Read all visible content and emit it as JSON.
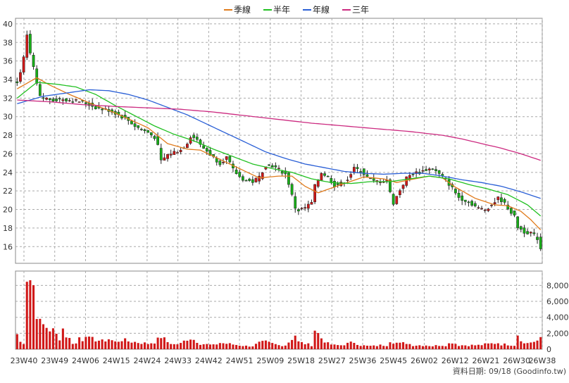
{
  "chart_data": {
    "type": "candlestick",
    "legend": [
      {
        "label": "季線",
        "color": "#e07b1c"
      },
      {
        "label": "半年",
        "color": "#20c020"
      },
      {
        "label": "年線",
        "color": "#2a5fd6"
      },
      {
        "label": "三年",
        "color": "#cc2a80"
      }
    ],
    "legend_position": "top-center",
    "grid": true,
    "price_axis": {
      "ylim": [
        14.2,
        40.6
      ],
      "ticks": [
        16,
        18,
        20,
        22,
        24,
        26,
        28,
        30,
        32,
        34,
        36,
        38,
        40
      ]
    },
    "volume_axis": {
      "ylim": [
        0,
        9800
      ],
      "ticks": [
        0,
        2000,
        4000,
        6000,
        8000
      ],
      "tick_labels": [
        "0",
        "2,000",
        "4,000",
        "6,000",
        "8,000"
      ]
    },
    "x_labels": [
      "23W40",
      "23W49",
      "24W06",
      "24W15",
      "24W24",
      "24W33",
      "24W42",
      "24W51",
      "25W09",
      "25W18",
      "25W27",
      "25W36",
      "25W45",
      "26W02",
      "26W12",
      "26W21",
      "26W30",
      "26W38"
    ],
    "colors": {
      "up": "#d01818",
      "down": "#18b018",
      "volume": "#d01818"
    },
    "price_anchors": [
      [
        0,
        33.8
      ],
      [
        1,
        34.6
      ],
      [
        2,
        36.3
      ],
      [
        3,
        38.7
      ],
      [
        4,
        36.8
      ],
      [
        5,
        35.2
      ],
      [
        6,
        33.5
      ],
      [
        7,
        32.1
      ],
      [
        8,
        32.0
      ],
      [
        10,
        31.9
      ],
      [
        12,
        31.8
      ],
      [
        14,
        31.9
      ],
      [
        16,
        31.8
      ],
      [
        18,
        31.7
      ],
      [
        20,
        31.6
      ],
      [
        22,
        31.3
      ],
      [
        24,
        31.0
      ],
      [
        26,
        30.8
      ],
      [
        28,
        30.7
      ],
      [
        30,
        30.4
      ],
      [
        32,
        30.0
      ],
      [
        34,
        29.6
      ],
      [
        36,
        29.0
      ],
      [
        38,
        28.6
      ],
      [
        40,
        28.3
      ],
      [
        42,
        27.8
      ],
      [
        43,
        26.8
      ],
      [
        44,
        25.2
      ],
      [
        46,
        25.9
      ],
      [
        48,
        26.2
      ],
      [
        50,
        26.4
      ],
      [
        52,
        27.2
      ],
      [
        53,
        27.9
      ],
      [
        55,
        27.6
      ],
      [
        56,
        26.9
      ],
      [
        58,
        26.3
      ],
      [
        60,
        25.6
      ],
      [
        62,
        25.0
      ],
      [
        64,
        25.6
      ],
      [
        66,
        24.3
      ],
      [
        68,
        23.5
      ],
      [
        70,
        23.1
      ],
      [
        72,
        23.0
      ],
      [
        74,
        23.5
      ],
      [
        76,
        24.8
      ],
      [
        78,
        24.7
      ],
      [
        80,
        24.3
      ],
      [
        82,
        23.8
      ],
      [
        83,
        22.8
      ],
      [
        85,
        20.2
      ],
      [
        86,
        19.9
      ],
      [
        88,
        20.2
      ],
      [
        90,
        20.7
      ],
      [
        91,
        22.5
      ],
      [
        93,
        24.0
      ],
      [
        95,
        23.5
      ],
      [
        97,
        22.6
      ],
      [
        99,
        22.8
      ],
      [
        101,
        23.3
      ],
      [
        103,
        24.4
      ],
      [
        105,
        24.2
      ],
      [
        107,
        23.5
      ],
      [
        109,
        23.0
      ],
      [
        111,
        23.1
      ],
      [
        113,
        23.2
      ],
      [
        114,
        21.8
      ],
      [
        115,
        20.7
      ],
      [
        117,
        22.1
      ],
      [
        119,
        23.4
      ],
      [
        121,
        23.9
      ],
      [
        123,
        24.0
      ],
      [
        125,
        24.3
      ],
      [
        127,
        24.4
      ],
      [
        129,
        23.8
      ],
      [
        131,
        23.2
      ],
      [
        133,
        22.3
      ],
      [
        135,
        21.3
      ],
      [
        137,
        21.0
      ],
      [
        139,
        20.6
      ],
      [
        141,
        20.1
      ],
      [
        143,
        20.0
      ],
      [
        145,
        20.5
      ],
      [
        147,
        21.2
      ],
      [
        148,
        21.0
      ],
      [
        150,
        20.2
      ],
      [
        152,
        19.2
      ],
      [
        153,
        18.1
      ],
      [
        155,
        17.6
      ],
      [
        157,
        17.5
      ],
      [
        159,
        16.9
      ],
      [
        160,
        15.8
      ]
    ],
    "volume_anchors": [
      [
        0,
        1900
      ],
      [
        1,
        900
      ],
      [
        2,
        800
      ],
      [
        3,
        9700
      ],
      [
        4,
        8900
      ],
      [
        5,
        8000
      ],
      [
        6,
        4800
      ],
      [
        7,
        3200
      ],
      [
        8,
        3000
      ],
      [
        9,
        2800
      ],
      [
        10,
        2500
      ],
      [
        11,
        2300
      ],
      [
        12,
        1800
      ],
      [
        13,
        1400
      ],
      [
        14,
        2600
      ],
      [
        15,
        1700
      ],
      [
        16,
        1300
      ],
      [
        17,
        800
      ],
      [
        18,
        700
      ],
      [
        19,
        1500
      ],
      [
        20,
        1200
      ],
      [
        21,
        2000
      ],
      [
        22,
        1300
      ],
      [
        24,
        1200
      ],
      [
        26,
        1000
      ],
      [
        28,
        1300
      ],
      [
        30,
        900
      ],
      [
        32,
        1200
      ],
      [
        34,
        1000
      ],
      [
        36,
        900
      ],
      [
        38,
        800
      ],
      [
        40,
        700
      ],
      [
        42,
        900
      ],
      [
        43,
        1200
      ],
      [
        44,
        1600
      ],
      [
        46,
        900
      ],
      [
        48,
        600
      ],
      [
        50,
        700
      ],
      [
        52,
        1300
      ],
      [
        53,
        1400
      ],
      [
        55,
        1000
      ],
      [
        56,
        700
      ],
      [
        58,
        600
      ],
      [
        60,
        500
      ],
      [
        62,
        800
      ],
      [
        64,
        700
      ],
      [
        66,
        600
      ],
      [
        68,
        500
      ],
      [
        70,
        400
      ],
      [
        72,
        400
      ],
      [
        74,
        800
      ],
      [
        76,
        900
      ],
      [
        78,
        700
      ],
      [
        80,
        500
      ],
      [
        82,
        500
      ],
      [
        83,
        900
      ],
      [
        85,
        1800
      ],
      [
        86,
        900
      ],
      [
        88,
        700
      ],
      [
        90,
        500
      ],
      [
        91,
        2500
      ],
      [
        93,
        1400
      ],
      [
        95,
        700
      ],
      [
        97,
        500
      ],
      [
        99,
        500
      ],
      [
        101,
        700
      ],
      [
        103,
        900
      ],
      [
        105,
        500
      ],
      [
        107,
        400
      ],
      [
        109,
        400
      ],
      [
        111,
        500
      ],
      [
        113,
        500
      ],
      [
        114,
        1100
      ],
      [
        115,
        900
      ],
      [
        117,
        700
      ],
      [
        119,
        800
      ],
      [
        121,
        500
      ],
      [
        123,
        500
      ],
      [
        125,
        500
      ],
      [
        127,
        400
      ],
      [
        129,
        500
      ],
      [
        131,
        500
      ],
      [
        133,
        900
      ],
      [
        135,
        500
      ],
      [
        137,
        500
      ],
      [
        139,
        500
      ],
      [
        141,
        500
      ],
      [
        143,
        600
      ],
      [
        145,
        700
      ],
      [
        147,
        800
      ],
      [
        148,
        600
      ],
      [
        150,
        600
      ],
      [
        152,
        500
      ],
      [
        153,
        1900
      ],
      [
        155,
        700
      ],
      [
        157,
        900
      ],
      [
        159,
        900
      ],
      [
        160,
        1500
      ]
    ],
    "ma_anchors": {
      "季線": [
        [
          0,
          33.0
        ],
        [
          6,
          34.2
        ],
        [
          10,
          33.4
        ],
        [
          16,
          32.4
        ],
        [
          22,
          31.5
        ],
        [
          30,
          30.4
        ],
        [
          40,
          28.8
        ],
        [
          46,
          27.1
        ],
        [
          52,
          26.5
        ],
        [
          56,
          26.4
        ],
        [
          62,
          25.4
        ],
        [
          68,
          24.4
        ],
        [
          74,
          23.4
        ],
        [
          80,
          23.6
        ],
        [
          84,
          23.6
        ],
        [
          88,
          22.5
        ],
        [
          92,
          21.8
        ],
        [
          96,
          22.3
        ],
        [
          100,
          22.8
        ],
        [
          106,
          23.5
        ],
        [
          112,
          23.3
        ],
        [
          116,
          22.9
        ],
        [
          120,
          23.2
        ],
        [
          126,
          23.6
        ],
        [
          130,
          23.4
        ],
        [
          134,
          22.4
        ],
        [
          140,
          21.2
        ],
        [
          146,
          20.5
        ],
        [
          150,
          20.4
        ],
        [
          154,
          19.8
        ],
        [
          157,
          18.9
        ],
        [
          160,
          17.8
        ]
      ],
      "半年": [
        [
          0,
          32.0
        ],
        [
          6,
          33.7
        ],
        [
          12,
          33.5
        ],
        [
          18,
          33.2
        ],
        [
          24,
          32.4
        ],
        [
          30,
          31.2
        ],
        [
          36,
          30.1
        ],
        [
          42,
          29.0
        ],
        [
          48,
          28.1
        ],
        [
          54,
          27.4
        ],
        [
          60,
          26.5
        ],
        [
          66,
          25.7
        ],
        [
          72,
          24.9
        ],
        [
          78,
          24.4
        ],
        [
          84,
          24.0
        ],
        [
          90,
          23.3
        ],
        [
          96,
          22.9
        ],
        [
          102,
          22.8
        ],
        [
          108,
          23.0
        ],
        [
          114,
          23.0
        ],
        [
          120,
          23.3
        ],
        [
          126,
          23.6
        ],
        [
          132,
          23.3
        ],
        [
          138,
          22.7
        ],
        [
          144,
          22.2
        ],
        [
          150,
          21.6
        ],
        [
          156,
          20.5
        ],
        [
          160,
          19.3
        ]
      ],
      "年線": [
        [
          0,
          31.4
        ],
        [
          8,
          32.2
        ],
        [
          16,
          32.6
        ],
        [
          22,
          32.9
        ],
        [
          28,
          32.8
        ],
        [
          34,
          32.4
        ],
        [
          40,
          31.8
        ],
        [
          46,
          31.0
        ],
        [
          52,
          30.2
        ],
        [
          58,
          29.2
        ],
        [
          64,
          28.2
        ],
        [
          70,
          27.2
        ],
        [
          76,
          26.2
        ],
        [
          82,
          25.5
        ],
        [
          88,
          24.9
        ],
        [
          94,
          24.5
        ],
        [
          100,
          24.1
        ],
        [
          106,
          23.9
        ],
        [
          112,
          23.8
        ],
        [
          118,
          23.9
        ],
        [
          124,
          23.9
        ],
        [
          130,
          23.6
        ],
        [
          136,
          23.2
        ],
        [
          142,
          22.9
        ],
        [
          148,
          22.5
        ],
        [
          154,
          21.9
        ],
        [
          160,
          21.2
        ]
      ],
      "三年": [
        [
          0,
          31.8
        ],
        [
          10,
          31.6
        ],
        [
          20,
          31.3
        ],
        [
          30,
          31.1
        ],
        [
          40,
          30.95
        ],
        [
          50,
          30.8
        ],
        [
          60,
          30.5
        ],
        [
          70,
          30.1
        ],
        [
          80,
          29.7
        ],
        [
          90,
          29.3
        ],
        [
          100,
          29.0
        ],
        [
          110,
          28.7
        ],
        [
          120,
          28.4
        ],
        [
          130,
          28.0
        ],
        [
          136,
          27.6
        ],
        [
          142,
          27.1
        ],
        [
          148,
          26.6
        ],
        [
          154,
          26.0
        ],
        [
          160,
          25.3
        ]
      ]
    },
    "candle_count": 161
  },
  "footer": {
    "text": "資料日期: 09/18 (Goodinfo.tw)"
  }
}
